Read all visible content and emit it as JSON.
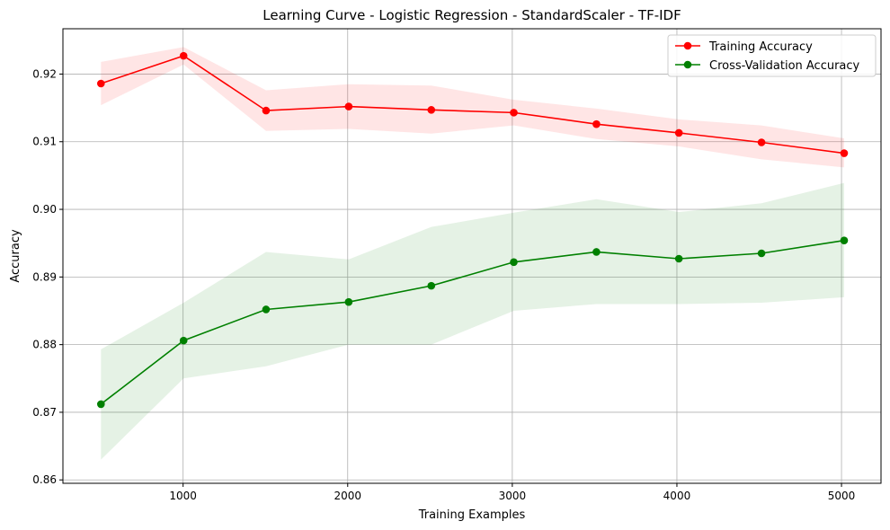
{
  "chart_data": {
    "type": "line",
    "title": "Learning Curve - Logistic Regression - StandardScaler - TF-IDF",
    "xlabel": "Training Examples",
    "ylabel": "Accuracy",
    "xlim": [
      270,
      5240
    ],
    "ylim": [
      0.8595,
      0.9267
    ],
    "xticks": [
      1000,
      2000,
      3000,
      4000,
      5000
    ],
    "yticks": [
      0.86,
      0.87,
      0.88,
      0.89,
      0.9,
      0.91,
      0.92
    ],
    "ytick_labels": [
      "0.86",
      "0.87",
      "0.88",
      "0.89",
      "0.90",
      "0.91",
      "0.92"
    ],
    "grid": true,
    "legend_position": "top-right",
    "x": [
      501,
      1003,
      1504,
      2006,
      2508,
      3009,
      3511,
      4012,
      4514,
      5016
    ],
    "series": [
      {
        "name": "Training Accuracy",
        "color": "#ff0000",
        "values": [
          0.9186,
          0.9227,
          0.9146,
          0.9152,
          0.9147,
          0.9143,
          0.9126,
          0.9113,
          0.9099,
          0.9083
        ],
        "band_lower": [
          0.9154,
          0.9214,
          0.9116,
          0.9119,
          0.9112,
          0.9124,
          0.9104,
          0.9093,
          0.9074,
          0.9062
        ],
        "band_upper": [
          0.9218,
          0.924,
          0.9176,
          0.9185,
          0.9183,
          0.9162,
          0.9149,
          0.9133,
          0.9124,
          0.9105
        ]
      },
      {
        "name": "Cross-Validation Accuracy",
        "color": "#008000",
        "values": [
          0.8712,
          0.8806,
          0.8852,
          0.8863,
          0.8887,
          0.8922,
          0.8937,
          0.8927,
          0.8935,
          0.8954
        ],
        "band_lower": [
          0.863,
          0.875,
          0.8768,
          0.88,
          0.88,
          0.885,
          0.886,
          0.886,
          0.8862,
          0.887
        ],
        "band_upper": [
          0.8793,
          0.8862,
          0.8937,
          0.8926,
          0.8974,
          0.8995,
          0.9015,
          0.8996,
          0.9009,
          0.9039
        ]
      }
    ]
  }
}
